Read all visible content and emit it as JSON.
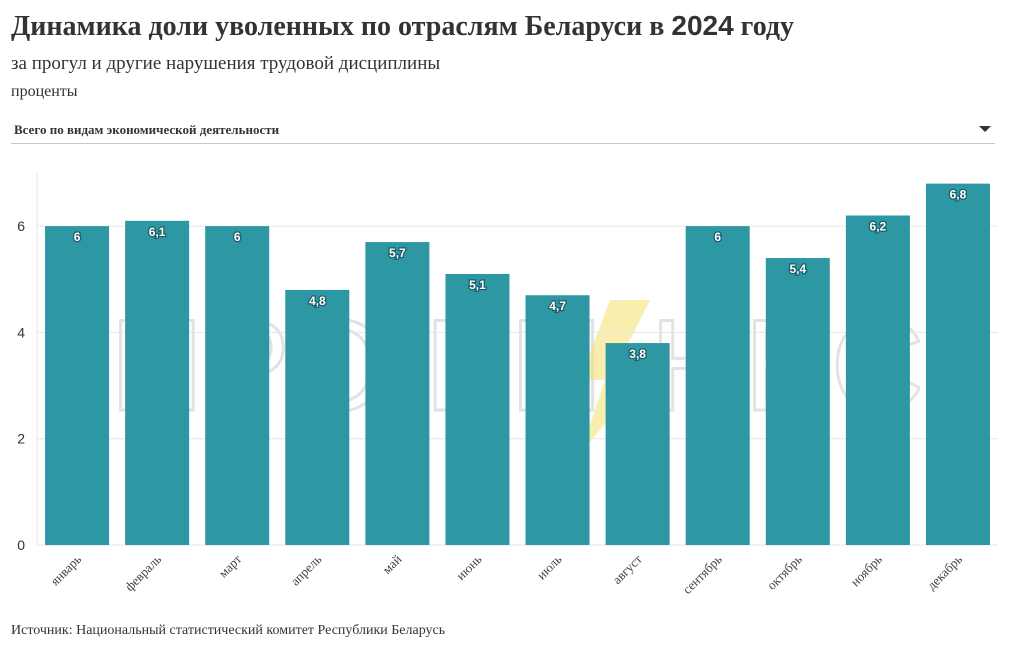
{
  "header": {
    "title": "Динамика доли уволенных по отраслям Беларуси в ",
    "title_year": "2024",
    "title_end": " году",
    "subtitle": "за прогул и другие нарушения трудовой дисциплины",
    "units": "проценты"
  },
  "filter": {
    "selected": "Всего по видам экономической деятельности"
  },
  "watermark": {
    "left": "ПРО БИ",
    "right": "НЕС"
  },
  "colors": {
    "bar": "#2d97a4",
    "grid": "#e6e6e6",
    "accent": "#f5e06b"
  },
  "chart_data": {
    "type": "bar",
    "categories": [
      "январь",
      "февраль",
      "март",
      "апрель",
      "май",
      "июнь",
      "июль",
      "август",
      "сентябрь",
      "октябрь",
      "ноябрь",
      "декабрь"
    ],
    "values": [
      6,
      6.1,
      6,
      4.8,
      5.7,
      5.1,
      4.7,
      3.8,
      6,
      5.4,
      6.2,
      6.8
    ],
    "value_labels": [
      "6",
      "6,1",
      "6",
      "4,8",
      "5,7",
      "5,1",
      "4,7",
      "3,8",
      "6",
      "5,4",
      "6,2",
      "6,8"
    ],
    "yticks": [
      0,
      2,
      4,
      6
    ],
    "ylim": [
      0,
      7
    ],
    "grid": true,
    "title": "Динамика доли уволенных по отраслям Беларуси в 2024 году"
  },
  "footer": {
    "source": "Источник: Национальный статистический комитет Республики Беларусь"
  }
}
